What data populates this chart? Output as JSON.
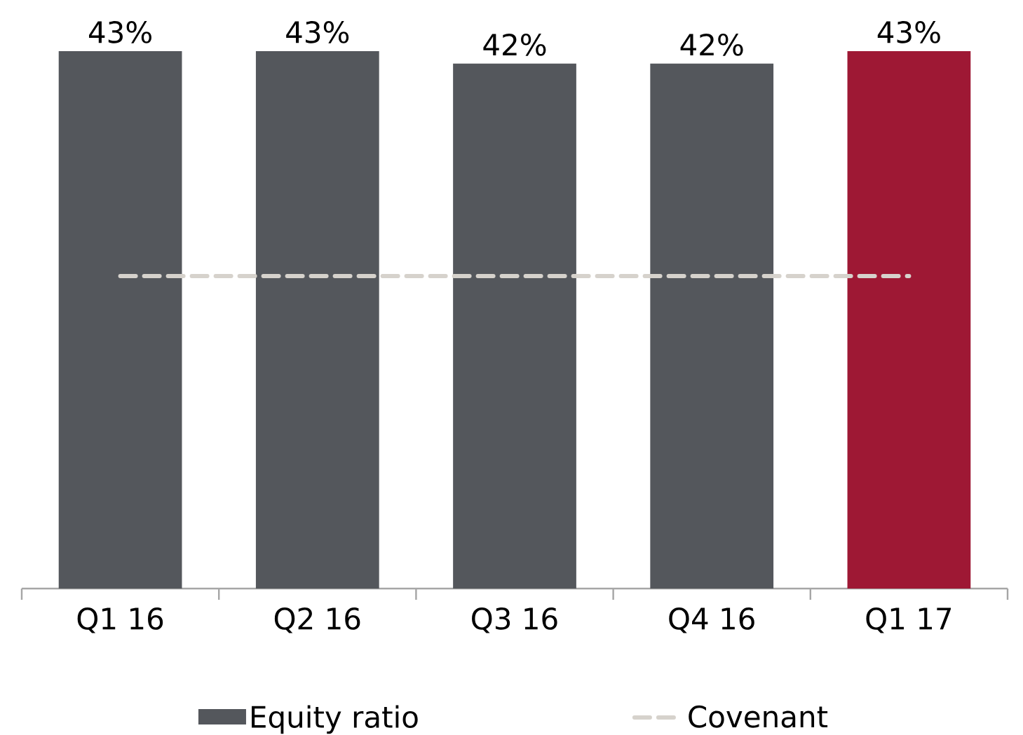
{
  "chart_data": {
    "type": "bar",
    "categories": [
      "Q1 16",
      "Q2 16",
      "Q3 16",
      "Q4 16",
      "Q1 17"
    ],
    "series": [
      {
        "name": "Equity ratio",
        "colors": [
          "#54575c",
          "#54575c",
          "#54575c",
          "#54575c",
          "#9e1834"
        ],
        "values": [
          43,
          43,
          42,
          42,
          43
        ],
        "value_labels": [
          "43%",
          "43%",
          "42%",
          "42%",
          "43%"
        ]
      },
      {
        "name": "Covenant",
        "type": "line",
        "color": "#d6d2cc",
        "line_style": "dashed",
        "values": [
          25,
          25,
          25,
          25,
          25
        ]
      }
    ],
    "legend": "bottom"
  }
}
